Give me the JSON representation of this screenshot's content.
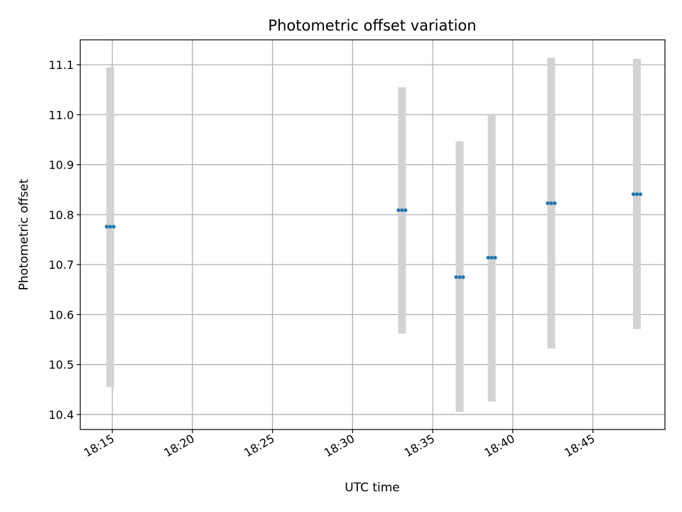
{
  "chart_data": {
    "type": "scatter",
    "title": "Photometric offset variation",
    "xlabel": "UTC time",
    "ylabel": "Photometric offset",
    "xlim": [
      "18:13",
      "18:49:30"
    ],
    "ylim": [
      10.37,
      11.15
    ],
    "x_ticks": [
      "18:15",
      "18:20",
      "18:25",
      "18:30",
      "18:35",
      "18:40",
      "18:45"
    ],
    "y_ticks": [
      "10.4",
      "10.5",
      "10.6",
      "10.7",
      "10.8",
      "10.9",
      "11.0",
      "11.1"
    ],
    "grid": true,
    "colors": {
      "marker": "#1f77b4",
      "errorbar": "#d3d3d3",
      "grid": "#b0b0b0",
      "axes": "#000000"
    },
    "points": [
      {
        "x": "18:14:52",
        "y": 10.776,
        "low": 10.455,
        "high": 11.095
      },
      {
        "x": "18:33:05",
        "y": 10.809,
        "low": 10.562,
        "high": 11.055
      },
      {
        "x": "18:36:41",
        "y": 10.675,
        "low": 10.405,
        "high": 10.947
      },
      {
        "x": "18:38:41",
        "y": 10.714,
        "low": 10.426,
        "high": 11.002
      },
      {
        "x": "18:42:24",
        "y": 10.823,
        "low": 10.532,
        "high": 11.114
      },
      {
        "x": "18:47:45",
        "y": 10.841,
        "low": 10.571,
        "high": 11.112
      }
    ]
  }
}
